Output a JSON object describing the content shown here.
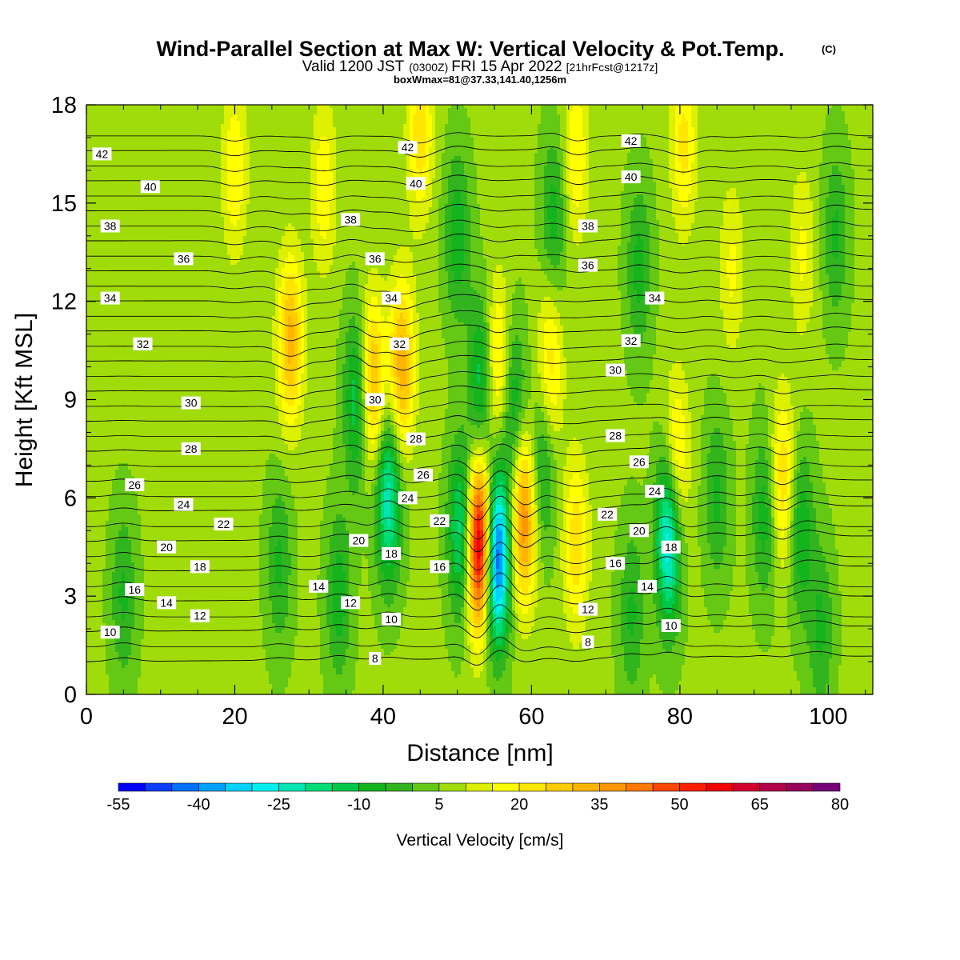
{
  "header": {
    "title": "Wind-Parallel Section at Max W: Vertical Velocity & Pot.Temp.",
    "copyright": "(C)",
    "valid_prefix": "Valid 1200 JST",
    "valid_zulu": "(0300Z)",
    "valid_date": "FRI 15 Apr 2022",
    "forecast": "[21hrFcst@1217z]",
    "box_info": "boxWmax=81@37.33,141.40,1256m"
  },
  "chart_data": {
    "type": "heatmap",
    "xlabel": "Distance [nm]",
    "ylabel": "Height [Kft MSL]",
    "xlim": [
      0,
      106
    ],
    "ylim": [
      0,
      18
    ],
    "x_ticks": [
      0,
      20,
      40,
      60,
      80,
      100
    ],
    "y_ticks": [
      0,
      3,
      6,
      9,
      12,
      15,
      18
    ],
    "colorbar": {
      "label": "Vertical Velocity [cm/s]",
      "tick_labels": [
        "-55",
        "-40",
        "-25",
        "-10",
        "5",
        "20",
        "35",
        "50",
        "65",
        "80"
      ],
      "levels": [
        -55,
        -50,
        -45,
        -40,
        -35,
        -30,
        -25,
        -20,
        -15,
        -10,
        -5,
        0,
        5,
        10,
        15,
        20,
        25,
        30,
        35,
        40,
        45,
        50,
        55,
        60,
        65,
        70,
        75,
        80
      ],
      "colors": [
        "#0000ff",
        "#0a3cff",
        "#0070ff",
        "#00a0ff",
        "#00d2ff",
        "#00f0f0",
        "#00e6b4",
        "#00dc78",
        "#00c84b",
        "#14b41e",
        "#32b41e",
        "#64c814",
        "#a0dc0a",
        "#dcf000",
        "#ffff00",
        "#ffe600",
        "#ffcc00",
        "#ffb400",
        "#ff9600",
        "#ff7800",
        "#ff4600",
        "#ff1e00",
        "#f00000",
        "#d2002d",
        "#b4004b",
        "#96005a",
        "#780078"
      ]
    },
    "background_w": 6,
    "updraft_cells": [
      {
        "x": 53,
        "z": 4.6,
        "w": 62
      },
      {
        "x": 59,
        "z": 5.4,
        "w": 34
      },
      {
        "x": 38.5,
        "z": 9.5,
        "w": 28
      },
      {
        "x": 42.5,
        "z": 10.0,
        "w": 28
      },
      {
        "x": 27.5,
        "z": 10.8,
        "w": 26
      },
      {
        "x": 66,
        "z": 4.6,
        "w": 18
      },
      {
        "x": 79.5,
        "z": 7.0,
        "w": 20
      },
      {
        "x": 93.8,
        "z": 6.5,
        "w": 20
      },
      {
        "x": 55.5,
        "z": 10.0,
        "w": 20
      },
      {
        "x": 62.5,
        "z": 10.0,
        "w": 18
      },
      {
        "x": 45,
        "z": 17.2,
        "w": 18
      },
      {
        "x": 80.5,
        "z": 16.8,
        "w": 16
      },
      {
        "x": 20,
        "z": 16.0,
        "w": 14
      },
      {
        "x": 66,
        "z": 16.5,
        "w": 14
      },
      {
        "x": 32,
        "z": 15.5,
        "w": 13
      },
      {
        "x": 96.5,
        "z": 13.5,
        "w": 10
      },
      {
        "x": 87,
        "z": 13.0,
        "w": 10
      }
    ],
    "downdraft_cells": [
      {
        "x": 55.3,
        "z": 4.2,
        "w": -55
      },
      {
        "x": 78.5,
        "z": 4.8,
        "w": -38
      },
      {
        "x": 40.7,
        "z": 6.0,
        "w": -30
      },
      {
        "x": 36.5,
        "z": 9.0,
        "w": -22
      },
      {
        "x": 50.5,
        "z": 5.0,
        "w": -26
      },
      {
        "x": 53.2,
        "z": 9.5,
        "w": -20
      },
      {
        "x": 57.5,
        "z": 8.8,
        "w": -18
      },
      {
        "x": 61.5,
        "z": 7.0,
        "w": -16
      },
      {
        "x": 96.3,
        "z": 5.0,
        "w": -16
      },
      {
        "x": 91.5,
        "z": 5.5,
        "w": -15
      },
      {
        "x": 34,
        "z": 3.0,
        "w": -14
      },
      {
        "x": 73.5,
        "z": 2.5,
        "w": -12
      },
      {
        "x": 50,
        "z": 14.0,
        "w": -15
      },
      {
        "x": 63,
        "z": 14.5,
        "w": -14
      },
      {
        "x": 101,
        "z": 14.0,
        "w": -12
      },
      {
        "x": 74.5,
        "z": 13.0,
        "w": -13
      },
      {
        "x": 5,
        "z": 3.0,
        "w": -12
      },
      {
        "x": 99,
        "z": 2.0,
        "w": -12
      },
      {
        "x": 85,
        "z": 6.0,
        "w": -12
      },
      {
        "x": 26,
        "z": 4.0,
        "w": -12
      }
    ],
    "isentropes": {
      "levels": [
        8,
        10,
        12,
        14,
        16,
        18,
        20,
        22,
        24,
        26,
        28,
        30,
        32,
        34,
        36,
        38,
        40,
        42
      ],
      "labels": [
        {
          "text": "42",
          "x": 2.1,
          "z": 16.5
        },
        {
          "text": "42",
          "x": 43.3,
          "z": 16.7
        },
        {
          "text": "42",
          "x": 73.4,
          "z": 16.9
        },
        {
          "text": "40",
          "x": 8.6,
          "z": 15.5
        },
        {
          "text": "40",
          "x": 44.4,
          "z": 15.6
        },
        {
          "text": "40",
          "x": 73.4,
          "z": 15.8
        },
        {
          "text": "38",
          "x": 3.2,
          "z": 14.3
        },
        {
          "text": "38",
          "x": 35.6,
          "z": 14.5
        },
        {
          "text": "38",
          "x": 67.6,
          "z": 14.3
        },
        {
          "text": "36",
          "x": 13.1,
          "z": 13.3
        },
        {
          "text": "36",
          "x": 38.9,
          "z": 13.3
        },
        {
          "text": "36",
          "x": 67.6,
          "z": 13.1
        },
        {
          "text": "34",
          "x": 3.2,
          "z": 12.1
        },
        {
          "text": "34",
          "x": 41.1,
          "z": 12.1
        },
        {
          "text": "34",
          "x": 76.6,
          "z": 12.1
        },
        {
          "text": "32",
          "x": 7.6,
          "z": 10.7
        },
        {
          "text": "32",
          "x": 42.2,
          "z": 10.7
        },
        {
          "text": "32",
          "x": 73.4,
          "z": 10.8
        },
        {
          "text": "30",
          "x": 71.3,
          "z": 9.9
        },
        {
          "text": "30",
          "x": 14.1,
          "z": 8.9
        },
        {
          "text": "30",
          "x": 38.9,
          "z": 9.0
        },
        {
          "text": "28",
          "x": 14.1,
          "z": 7.5
        },
        {
          "text": "28",
          "x": 44.4,
          "z": 7.8
        },
        {
          "text": "28",
          "x": 71.3,
          "z": 7.9
        },
        {
          "text": "26",
          "x": 6.5,
          "z": 6.4
        },
        {
          "text": "26",
          "x": 45.4,
          "z": 6.7
        },
        {
          "text": "26",
          "x": 74.5,
          "z": 7.1
        },
        {
          "text": "24",
          "x": 13.1,
          "z": 5.8
        },
        {
          "text": "24",
          "x": 43.3,
          "z": 6.0
        },
        {
          "text": "24",
          "x": 76.6,
          "z": 6.2
        },
        {
          "text": "22",
          "x": 18.5,
          "z": 5.2
        },
        {
          "text": "22",
          "x": 47.6,
          "z": 5.3
        },
        {
          "text": "22",
          "x": 70.2,
          "z": 5.5
        },
        {
          "text": "20",
          "x": 10.8,
          "z": 4.5
        },
        {
          "text": "20",
          "x": 36.7,
          "z": 4.7
        },
        {
          "text": "20",
          "x": 74.5,
          "z": 5.0
        },
        {
          "text": "18",
          "x": 15.3,
          "z": 3.9
        },
        {
          "text": "18",
          "x": 41.1,
          "z": 4.3
        },
        {
          "text": "18",
          "x": 78.8,
          "z": 4.5
        },
        {
          "text": "16",
          "x": 6.5,
          "z": 3.2
        },
        {
          "text": "16",
          "x": 47.6,
          "z": 3.9
        },
        {
          "text": "16",
          "x": 71.3,
          "z": 4.0
        },
        {
          "text": "14",
          "x": 10.8,
          "z": 2.8
        },
        {
          "text": "14",
          "x": 31.3,
          "z": 3.3
        },
        {
          "text": "14",
          "x": 75.6,
          "z": 3.3
        },
        {
          "text": "12",
          "x": 15.3,
          "z": 2.4
        },
        {
          "text": "12",
          "x": 35.6,
          "z": 2.8
        },
        {
          "text": "12",
          "x": 67.6,
          "z": 2.6
        },
        {
          "text": "10",
          "x": 3.2,
          "z": 1.9
        },
        {
          "text": "10",
          "x": 41.1,
          "z": 2.3
        },
        {
          "text": "10",
          "x": 78.8,
          "z": 2.1
        },
        {
          "text": "8",
          "x": 38.9,
          "z": 1.1
        },
        {
          "text": "8",
          "x": 67.6,
          "z": 1.6
        }
      ]
    }
  }
}
